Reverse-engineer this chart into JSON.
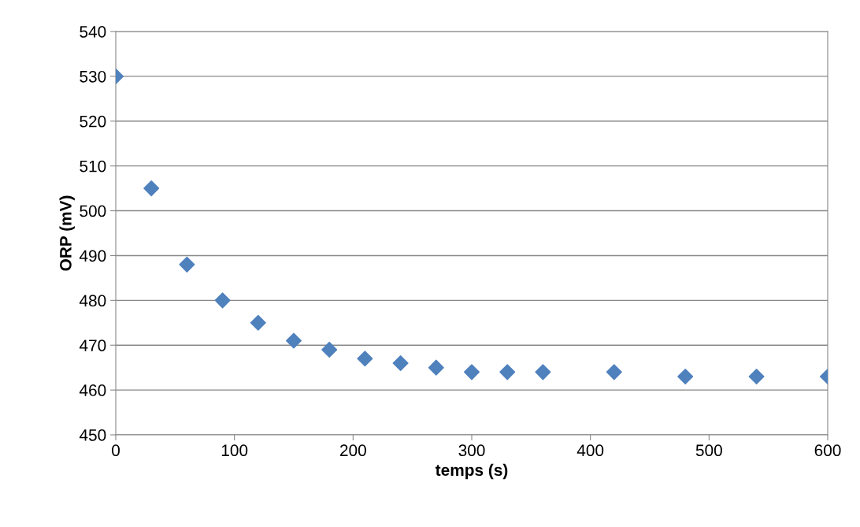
{
  "chart_data": {
    "type": "scatter",
    "xlabel": "temps (s)",
    "ylabel": "ORP (mV)",
    "x": [
      0,
      30,
      60,
      90,
      120,
      150,
      180,
      210,
      240,
      270,
      300,
      330,
      360,
      420,
      480,
      540,
      600
    ],
    "series": [
      {
        "color": "#4f81bd",
        "values": [
          530,
          505,
          488,
          480,
          475,
          471,
          469,
          467,
          466,
          465,
          464,
          464,
          464,
          464,
          463,
          463,
          463
        ]
      }
    ],
    "xlim": [
      0,
      600
    ],
    "xticks": [
      0,
      100,
      200,
      300,
      400,
      500,
      600
    ],
    "ylim": [
      450,
      540
    ],
    "yticks": [
      450,
      460,
      470,
      480,
      490,
      500,
      510,
      520,
      530,
      540
    ],
    "grid": "y",
    "marker": "diamond",
    "legend": false
  }
}
